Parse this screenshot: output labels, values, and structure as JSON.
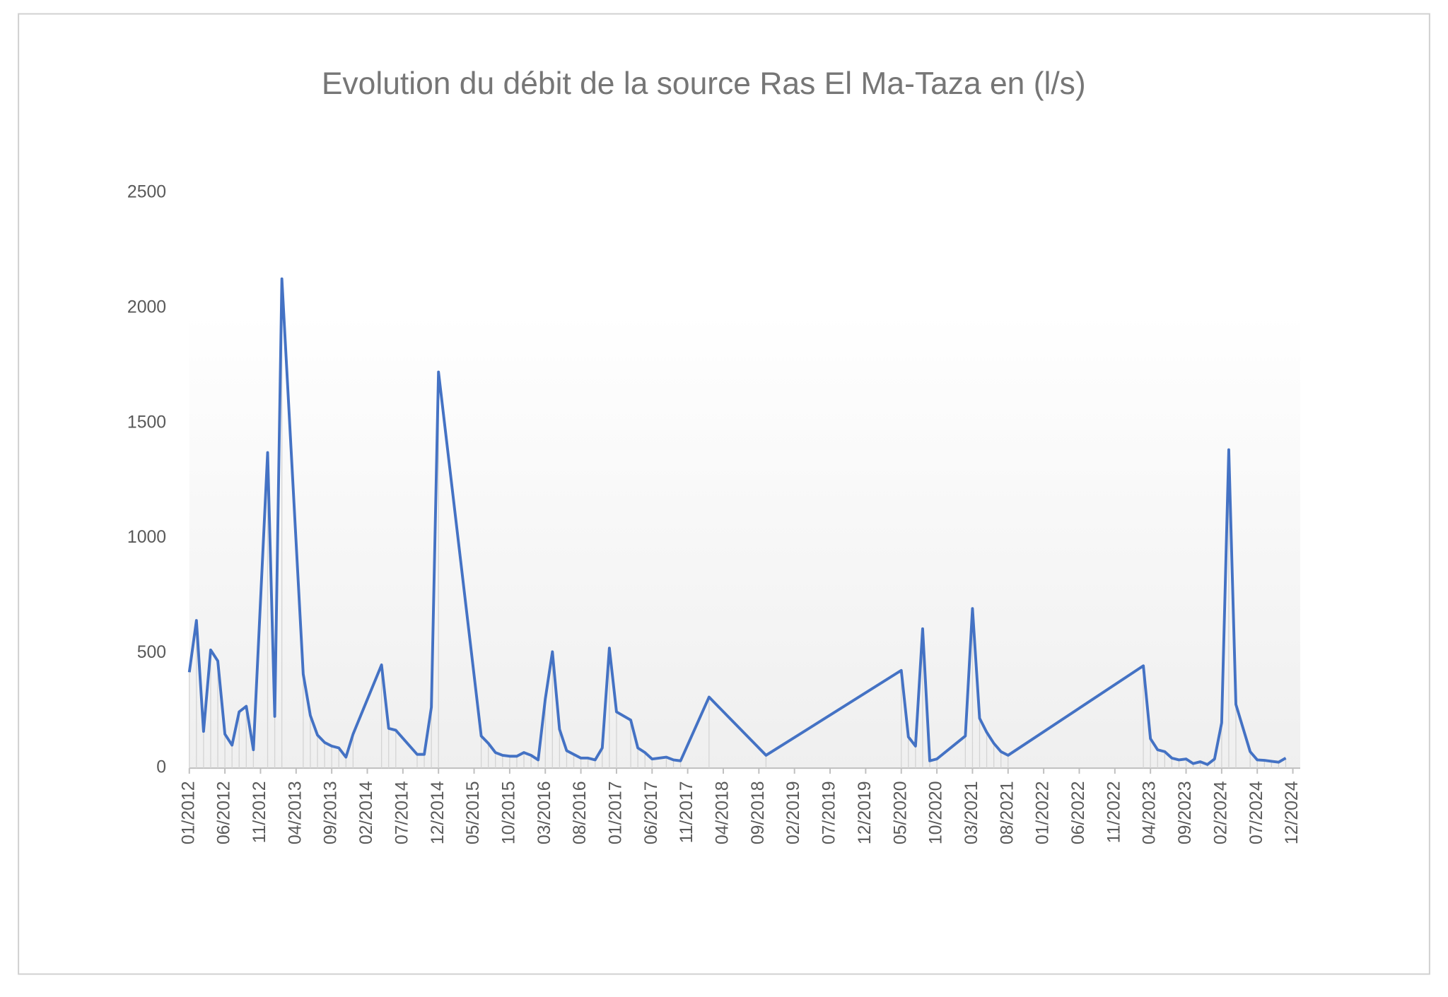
{
  "chart_data": {
    "type": "line",
    "title": "Evolution du débit de la source Ras El Ma-Taza en (l/s)",
    "x": [
      "01/2012",
      "02/2012",
      "03/2012",
      "04/2012",
      "05/2012",
      "06/2012",
      "07/2012",
      "08/2012",
      "09/2012",
      "10/2012",
      "12/2012",
      "01/2013",
      "02/2013",
      "05/2013",
      "06/2013",
      "07/2013",
      "08/2013",
      "09/2013",
      "10/2013",
      "11/2013",
      "12/2013",
      "04/2014",
      "05/2014",
      "06/2014",
      "09/2014",
      "10/2014",
      "11/2014",
      "12/2014",
      "06/2015",
      "07/2015",
      "08/2015",
      "09/2015",
      "10/2015",
      "11/2015",
      "12/2015",
      "01/2016",
      "02/2016",
      "03/2016",
      "04/2016",
      "05/2016",
      "06/2016",
      "07/2016",
      "08/2016",
      "09/2016",
      "10/2016",
      "11/2016",
      "12/2016",
      "01/2017",
      "03/2017",
      "04/2017",
      "05/2017",
      "06/2017",
      "08/2017",
      "09/2017",
      "10/2017",
      "02/2018",
      "10/2018",
      "05/2020",
      "06/2020",
      "07/2020",
      "08/2020",
      "09/2020",
      "10/2020",
      "02/2021",
      "03/2021",
      "04/2021",
      "05/2021",
      "06/2021",
      "07/2021",
      "08/2021",
      "03/2023",
      "04/2023",
      "05/2023",
      "06/2023",
      "07/2023",
      "08/2023",
      "09/2023",
      "10/2023",
      "11/2023",
      "12/2023",
      "01/2024",
      "02/2024",
      "03/2024",
      "04/2024",
      "06/2024",
      "07/2024",
      "08/2024",
      "09/2024",
      "10/2024",
      "11/2024"
    ],
    "series": [
      {
        "color": "#4472c4",
        "values": [
          417,
          642,
          160,
          514,
          466,
          148,
          100,
          245,
          269,
          80,
          1372,
          225,
          2127,
          409,
          229,
          144,
          112,
          96,
          88,
          48,
          148,
          449,
          173,
          165,
          60,
          60,
          265,
          1722,
          140,
          108,
          68,
          56,
          52,
          52,
          68,
          56,
          36,
          301,
          506,
          169,
          76,
          60,
          44,
          44,
          36,
          88,
          522,
          245,
          209,
          88,
          68,
          40,
          48,
          36,
          32,
          309,
          56,
          425,
          136,
          96,
          606,
          32,
          40,
          140,
          694,
          217,
          156,
          108,
          72,
          56,
          445,
          128,
          80,
          72,
          44,
          36,
          40,
          20,
          28,
          16,
          40,
          197,
          1384,
          277,
          72,
          36,
          34,
          30,
          26,
          44
        ]
      }
    ],
    "xlim": [
      "01/2012",
      "12/2024"
    ],
    "xticks": [
      "01/2012",
      "06/2012",
      "11/2012",
      "04/2013",
      "09/2013",
      "02/2014",
      "07/2014",
      "12/2014",
      "05/2015",
      "10/2015",
      "03/2016",
      "08/2016",
      "01/2017",
      "06/2017",
      "11/2017",
      "04/2018",
      "09/2018",
      "02/2019",
      "07/2019",
      "12/2019",
      "05/2020",
      "10/2020",
      "03/2021",
      "08/2021",
      "01/2022",
      "06/2022",
      "11/2022",
      "04/2023",
      "09/2023",
      "02/2024",
      "07/2024",
      "12/2024"
    ],
    "ylim": [
      0,
      2500
    ],
    "yticks": [
      0,
      500,
      1000,
      1500,
      2000,
      2500
    ],
    "drop_lines": true
  }
}
